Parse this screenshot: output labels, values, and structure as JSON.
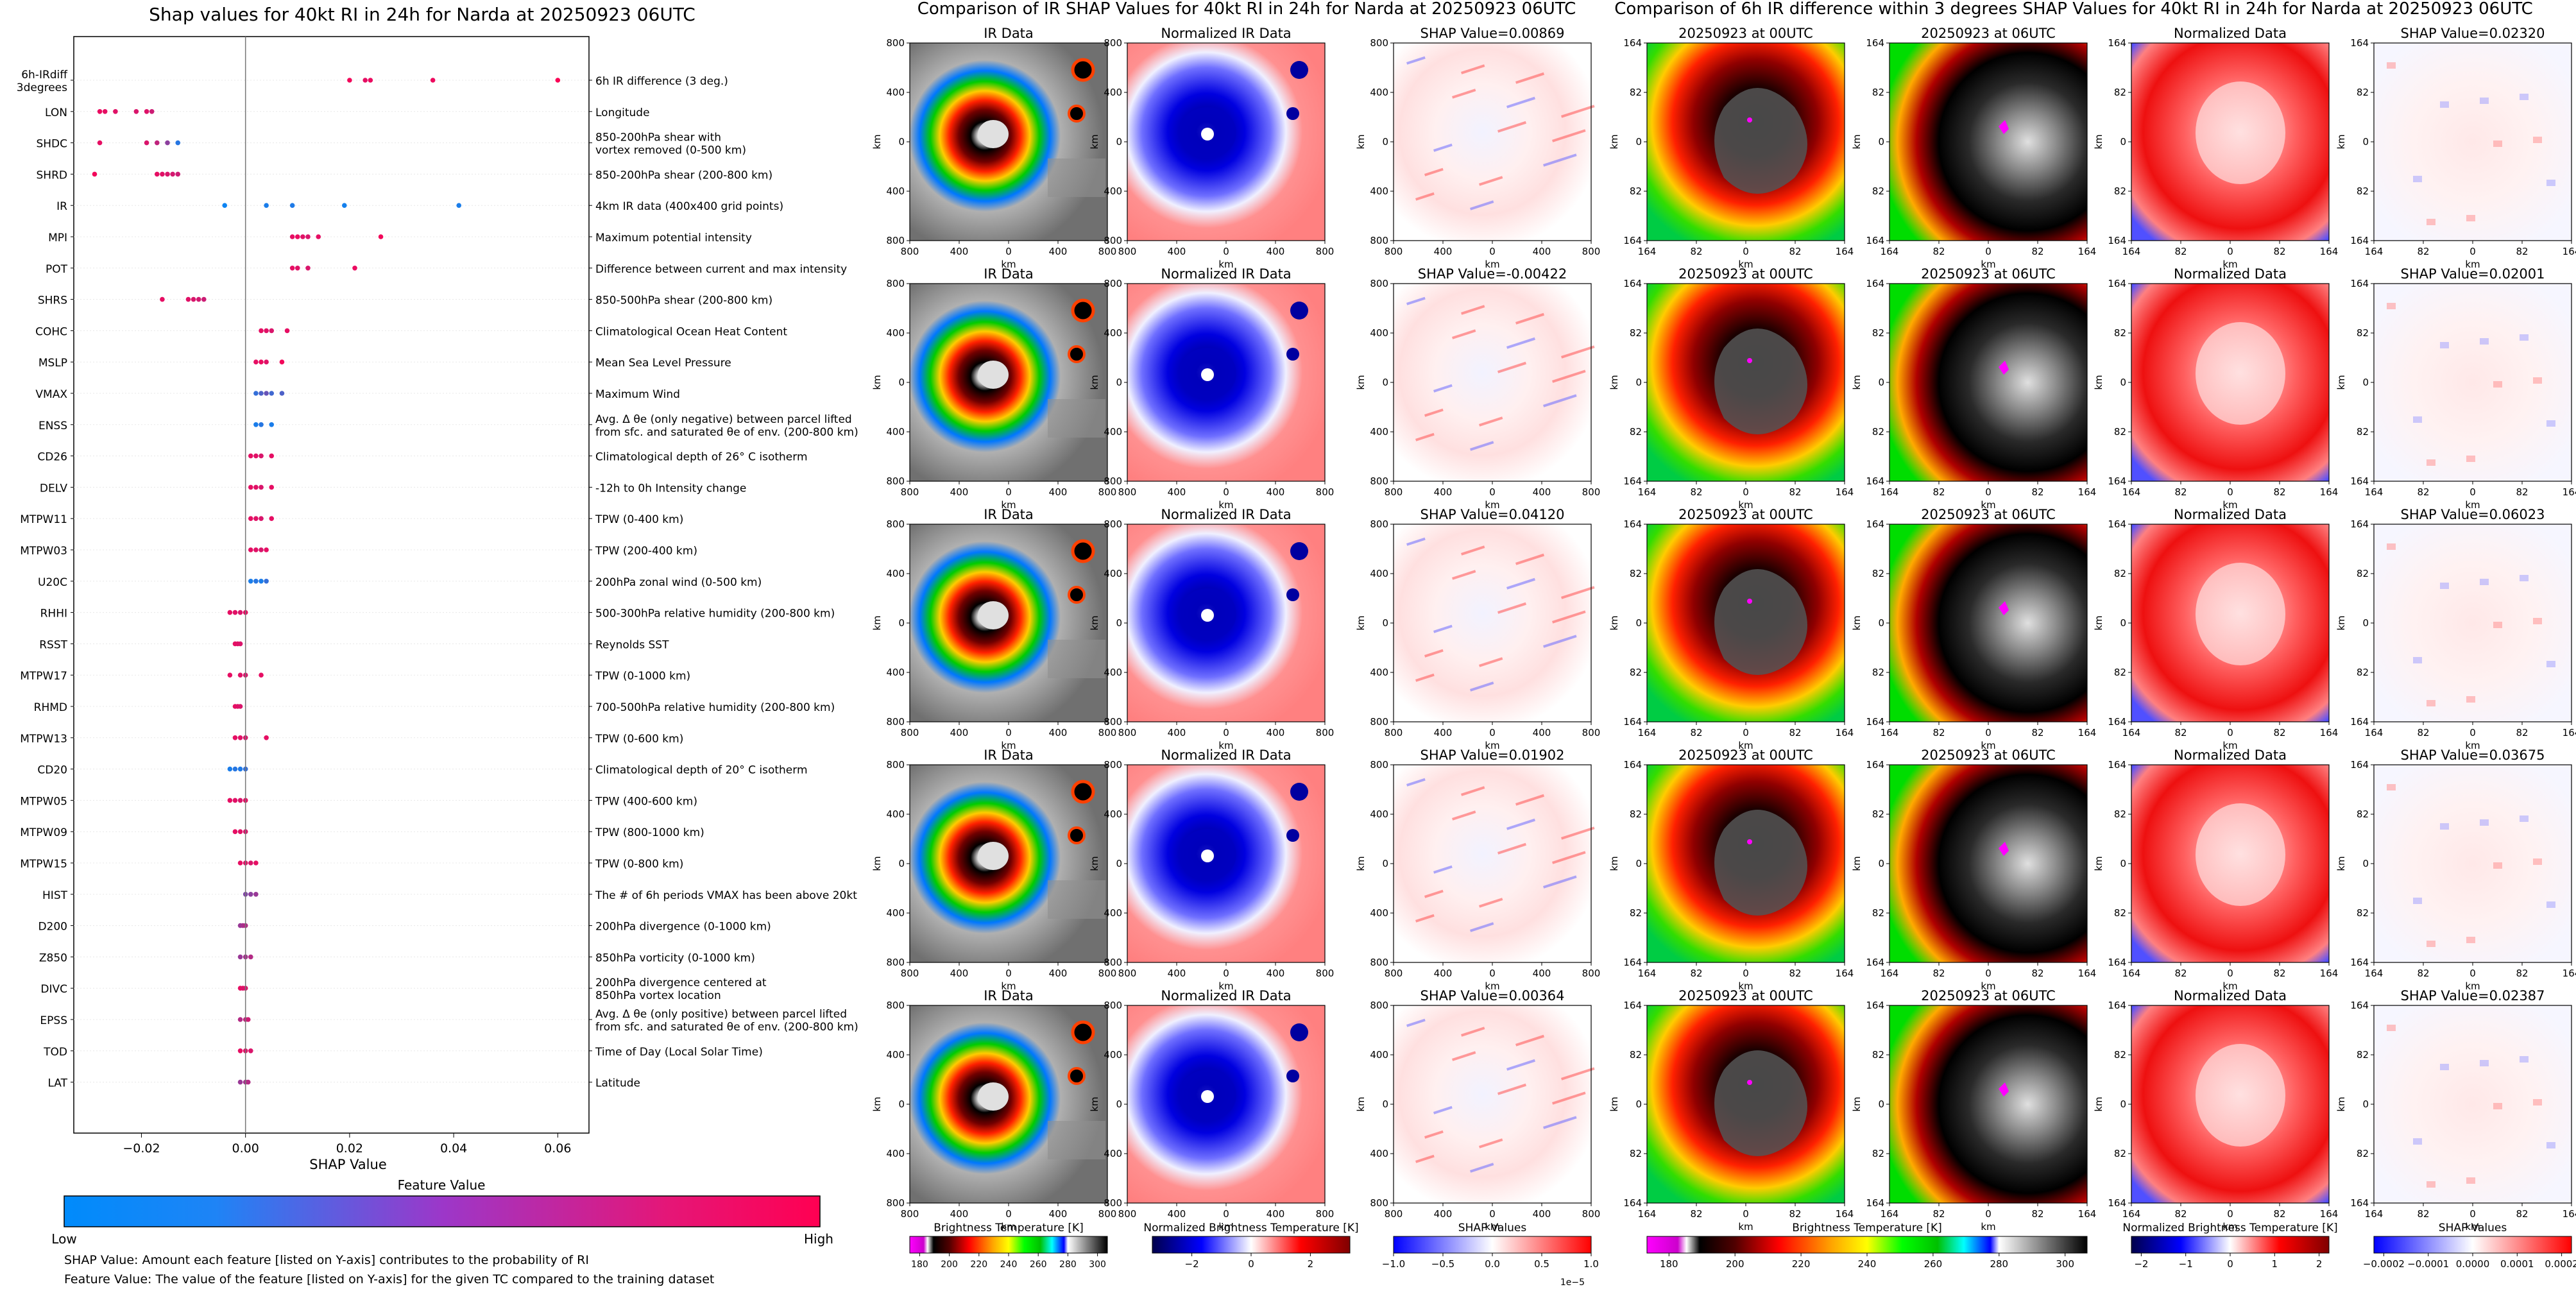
{
  "panels": {
    "left_title": "Shap values for 40kt RI in 24h for Narda at 20250923 06UTC",
    "middle_title": "Comparison of IR SHAP Values for 40kt RI in 24h for Narda at 20250923 06UTC",
    "right_title": "Comparison of 6h IR difference within 3 degrees SHAP Values for 40kt RI in 24h for Narda at 20250923 06UTC",
    "ir_column_title": "IR Data",
    "norm_column_title": "Normalized IR Data",
    "diff_t0_title": "20250923 at 00UTC",
    "diff_t6_title": "20250923 at 06UTC",
    "diff_norm_title": "Normalized Data",
    "ir_shap_titles": [
      "SHAP Value=0.00869",
      "SHAP Value=-0.00422",
      "SHAP Value=0.04120",
      "SHAP Value=0.01902",
      "SHAP Value=0.00364"
    ],
    "diff_shap_titles": [
      "SHAP Value=0.02320",
      "SHAP Value=0.02001",
      "SHAP Value=0.06023",
      "SHAP Value=0.03675",
      "SHAP Value=0.02387"
    ],
    "km_label": "km",
    "ir_x_ticks": [
      "800",
      "400",
      "0",
      "400",
      "800"
    ],
    "ir_y_ticks": [
      "800",
      "400",
      "0",
      "400",
      "800"
    ],
    "diff_x_ticks": [
      "164",
      "82",
      "0",
      "82",
      "164"
    ],
    "diff_y_ticks": [
      "164",
      "82",
      "0",
      "82",
      "164"
    ]
  },
  "colorbars": {
    "feature_value_title": "Feature Value",
    "low": "Low",
    "high": "High",
    "bt_label": "Brightness Temperature [K]",
    "bt_ticks": [
      "180",
      "200",
      "220",
      "240",
      "260",
      "280",
      "300"
    ],
    "norm_bt_label": "Normalized Brightness Temperature [K]",
    "norm_bt_ticks": [
      "−2",
      "0",
      "2"
    ],
    "shap_label": "SHAP Values",
    "shap_ticks": [
      "−1.0",
      "−0.5",
      "0.0",
      "0.5",
      "1.0"
    ],
    "shap_exponent": "1e−5",
    "bt2_label": "Brightness Temperature [K]",
    "bt2_ticks": [
      "180",
      "200",
      "220",
      "240",
      "260",
      "280",
      "300"
    ],
    "norm2_label": "Normalized Brightness Temperature [K]",
    "norm2_ticks": [
      "−2",
      "−1",
      "0",
      "1",
      "2"
    ],
    "shap2_label": "SHAP Values",
    "shap2_ticks": [
      "−0.0002",
      "−0.0001",
      "0.0000",
      "0.0001",
      "0.0002"
    ]
  },
  "notes": {
    "line1": "SHAP Value: Amount each feature [listed on Y-axis] contributes to the probability of RI",
    "line2": "Feature Value: The value of the feature [listed on Y-axis] for the given TC compared to the training dataset"
  },
  "chart_data": {
    "type": "scatter",
    "title": "Shap values for 40kt RI in 24h for Narda at 20250923 06UTC",
    "xlabel": "SHAP Value",
    "xlim": [
      -0.033,
      0.066
    ],
    "x_ticks": [
      -0.02,
      0.0,
      0.02,
      0.04,
      0.06
    ],
    "x_tick_labels": [
      "−0.02",
      "0.00",
      "0.02",
      "0.04",
      "0.06"
    ],
    "color_scale": {
      "low": "#008bfb",
      "high": "#ff0052"
    },
    "features": [
      {
        "name": "6h-IRdiff\n3degrees",
        "desc": "6h IR difference (3 deg.)",
        "points": [
          [
            0.02,
            0.95
          ],
          [
            0.023,
            0.9
          ],
          [
            0.024,
            0.92
          ],
          [
            0.036,
            0.93
          ],
          [
            0.06,
            0.98
          ]
        ]
      },
      {
        "name": "LON",
        "desc": "Longitude",
        "points": [
          [
            -0.027,
            0.9
          ],
          [
            -0.028,
            0.92
          ],
          [
            -0.025,
            0.88
          ],
          [
            -0.021,
            0.85
          ],
          [
            -0.019,
            0.87
          ],
          [
            -0.018,
            0.8
          ]
        ]
      },
      {
        "name": "SHDC",
        "desc": "850-200hPa shear with\nvortex removed (0-500 km)",
        "points": [
          [
            -0.028,
            0.9
          ],
          [
            -0.019,
            0.85
          ],
          [
            -0.017,
            0.75
          ],
          [
            -0.015,
            0.55
          ],
          [
            -0.013,
            0.15
          ]
        ]
      },
      {
        "name": "SHRD",
        "desc": "850-200hPa shear (200-800 km)",
        "points": [
          [
            -0.029,
            0.95
          ],
          [
            -0.017,
            0.9
          ],
          [
            -0.016,
            0.88
          ],
          [
            -0.015,
            0.85
          ],
          [
            -0.014,
            0.83
          ],
          [
            -0.013,
            0.8
          ]
        ]
      },
      {
        "name": "IR",
        "desc": "4km IR data (400x400 grid points)",
        "points": [
          [
            -0.004,
            0.05
          ],
          [
            0.004,
            0.1
          ],
          [
            0.009,
            0.12
          ],
          [
            0.019,
            0.08
          ],
          [
            0.041,
            0.1
          ]
        ]
      },
      {
        "name": "MPI",
        "desc": "Maximum potential intensity",
        "points": [
          [
            0.009,
            0.9
          ],
          [
            0.01,
            0.92
          ],
          [
            0.011,
            0.88
          ],
          [
            0.012,
            0.85
          ],
          [
            0.014,
            0.9
          ],
          [
            0.026,
            0.95
          ]
        ]
      },
      {
        "name": "POT",
        "desc": "Difference between current and max intensity",
        "points": [
          [
            0.009,
            0.9
          ],
          [
            0.01,
            0.88
          ],
          [
            0.012,
            0.85
          ],
          [
            0.021,
            0.92
          ]
        ]
      },
      {
        "name": "SHRS",
        "desc": "850-500hPa shear (200-800 km)",
        "points": [
          [
            -0.016,
            0.9
          ],
          [
            -0.011,
            0.88
          ],
          [
            -0.01,
            0.85
          ],
          [
            -0.009,
            0.82
          ],
          [
            -0.008,
            0.8
          ]
        ]
      },
      {
        "name": "COHC",
        "desc": "Climatological Ocean Heat Content",
        "points": [
          [
            0.003,
            0.9
          ],
          [
            0.004,
            0.88
          ],
          [
            0.005,
            0.85
          ],
          [
            0.008,
            0.9
          ]
        ]
      },
      {
        "name": "MSLP",
        "desc": "Mean Sea Level Pressure",
        "points": [
          [
            0.002,
            0.9
          ],
          [
            0.003,
            0.92
          ],
          [
            0.004,
            0.88
          ],
          [
            0.007,
            0.95
          ]
        ]
      },
      {
        "name": "VMAX",
        "desc": "Maximum Wind",
        "points": [
          [
            0.002,
            0.2
          ],
          [
            0.003,
            0.3
          ],
          [
            0.004,
            0.4
          ],
          [
            0.005,
            0.25
          ],
          [
            0.007,
            0.3
          ]
        ]
      },
      {
        "name": "ENSS",
        "desc": "Avg. Δ θe (only negative) between parcel lifted\nfrom sfc. and saturated θe of env. (200-800 km)",
        "points": [
          [
            0.002,
            0.1
          ],
          [
            0.003,
            0.15
          ],
          [
            0.005,
            0.1
          ]
        ]
      },
      {
        "name": "CD26",
        "desc": "Climatological depth of 26° C isotherm",
        "points": [
          [
            0.001,
            0.9
          ],
          [
            0.002,
            0.88
          ],
          [
            0.003,
            0.85
          ],
          [
            0.005,
            0.9
          ]
        ]
      },
      {
        "name": "DELV",
        "desc": "-12h to 0h Intensity change",
        "points": [
          [
            0.001,
            0.9
          ],
          [
            0.002,
            0.88
          ],
          [
            0.003,
            0.85
          ],
          [
            0.005,
            0.9
          ]
        ]
      },
      {
        "name": "MTPW11",
        "desc": "TPW (0-400 km)",
        "points": [
          [
            0.001,
            0.9
          ],
          [
            0.002,
            0.88
          ],
          [
            0.003,
            0.85
          ],
          [
            0.005,
            0.9
          ]
        ]
      },
      {
        "name": "MTPW03",
        "desc": "TPW (200-400 km)",
        "points": [
          [
            0.001,
            0.9
          ],
          [
            0.002,
            0.88
          ],
          [
            0.003,
            0.85
          ],
          [
            0.004,
            0.9
          ]
        ]
      },
      {
        "name": "U20C",
        "desc": "200hPa zonal wind (0-500 km)",
        "points": [
          [
            0.001,
            0.1
          ],
          [
            0.002,
            0.15
          ],
          [
            0.003,
            0.1
          ],
          [
            0.004,
            0.2
          ]
        ]
      },
      {
        "name": "RHHI",
        "desc": "500-300hPa relative humidity (200-800 km)",
        "points": [
          [
            -0.003,
            0.9
          ],
          [
            -0.002,
            0.88
          ],
          [
            -0.001,
            0.85
          ],
          [
            0.0,
            0.9
          ]
        ]
      },
      {
        "name": "RSST",
        "desc": "Reynolds SST",
        "points": [
          [
            -0.002,
            0.9
          ],
          [
            -0.0015,
            0.88
          ],
          [
            -0.001,
            0.85
          ]
        ]
      },
      {
        "name": "MTPW17",
        "desc": "TPW (0-1000 km)",
        "points": [
          [
            -0.003,
            0.9
          ],
          [
            -0.001,
            0.88
          ],
          [
            0.0,
            0.85
          ],
          [
            0.003,
            0.9
          ]
        ]
      },
      {
        "name": "RHMD",
        "desc": "700-500hPa relative humidity (200-800 km)",
        "points": [
          [
            -0.002,
            0.9
          ],
          [
            -0.0015,
            0.88
          ],
          [
            -0.001,
            0.85
          ]
        ]
      },
      {
        "name": "MTPW13",
        "desc": "TPW (0-600 km)",
        "points": [
          [
            -0.002,
            0.9
          ],
          [
            -0.001,
            0.88
          ],
          [
            0.0,
            0.85
          ],
          [
            0.004,
            0.9
          ]
        ]
      },
      {
        "name": "CD20",
        "desc": "Climatological depth of 20° C isotherm",
        "points": [
          [
            -0.003,
            0.1
          ],
          [
            -0.002,
            0.15
          ],
          [
            -0.001,
            0.12
          ],
          [
            0.0,
            0.2
          ]
        ]
      },
      {
        "name": "MTPW05",
        "desc": "TPW (400-600 km)",
        "points": [
          [
            -0.003,
            0.9
          ],
          [
            -0.002,
            0.88
          ],
          [
            -0.001,
            0.85
          ],
          [
            0.0,
            0.9
          ]
        ]
      },
      {
        "name": "MTPW09",
        "desc": "TPW (800-1000 km)",
        "points": [
          [
            -0.002,
            0.9
          ],
          [
            -0.001,
            0.88
          ],
          [
            0.0,
            0.85
          ]
        ]
      },
      {
        "name": "MTPW15",
        "desc": "TPW (0-800 km)",
        "points": [
          [
            -0.001,
            0.9
          ],
          [
            0.0,
            0.88
          ],
          [
            0.001,
            0.85
          ],
          [
            0.002,
            0.9
          ]
        ]
      },
      {
        "name": "HIST",
        "desc": "The # of 6h periods VMAX has been above 20kt",
        "points": [
          [
            0.0,
            0.5
          ],
          [
            0.001,
            0.55
          ],
          [
            0.002,
            0.6
          ]
        ]
      },
      {
        "name": "D200",
        "desc": "200hPa divergence (0-1000 km)",
        "points": [
          [
            -0.001,
            0.6
          ],
          [
            -0.0005,
            0.65
          ],
          [
            0.0,
            0.7
          ]
        ]
      },
      {
        "name": "Z850",
        "desc": "850hPa vorticity (0-1000 km)",
        "points": [
          [
            -0.001,
            0.6
          ],
          [
            0.0,
            0.65
          ],
          [
            0.001,
            0.7
          ]
        ]
      },
      {
        "name": "DIVC",
        "desc": "200hPa divergence centered at\n850hPa vortex location",
        "points": [
          [
            -0.001,
            0.9
          ],
          [
            -0.0005,
            0.88
          ],
          [
            0.0,
            0.85
          ]
        ]
      },
      {
        "name": "EPSS",
        "desc": "Avg. Δ θe (only positive) between parcel lifted\nfrom sfc. and saturated θe of env. (200-800 km)",
        "points": [
          [
            -0.001,
            0.7
          ],
          [
            0.0,
            0.75
          ],
          [
            0.0005,
            0.8
          ]
        ]
      },
      {
        "name": "TOD",
        "desc": "Time of Day (Local Solar Time)",
        "points": [
          [
            -0.001,
            0.9
          ],
          [
            0.0,
            0.88
          ],
          [
            0.001,
            0.85
          ]
        ]
      },
      {
        "name": "LAT",
        "desc": "Latitude",
        "points": [
          [
            -0.001,
            0.6
          ],
          [
            0.0,
            0.65
          ],
          [
            0.0005,
            0.7
          ]
        ]
      }
    ]
  }
}
